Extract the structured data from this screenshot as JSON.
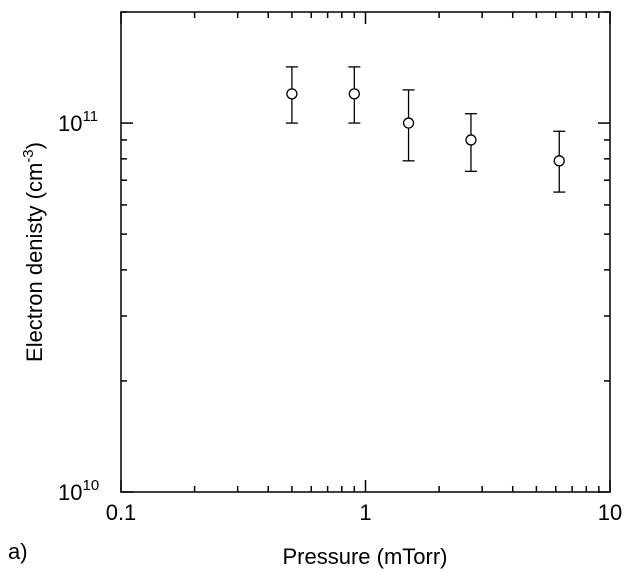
{
  "chart_data": {
    "type": "scatter",
    "panel_label": "a)",
    "xlabel": "Pressure (mTorr)",
    "ylabel_main": "Electron denisty (cm",
    "ylabel_sup": "-3",
    "ylabel_close": ")",
    "x_scale": "log",
    "y_scale": "log",
    "xlim": [
      0.1,
      10
    ],
    "ylim": [
      10000000000.0,
      200000000000.0
    ],
    "x_ticks": [
      {
        "value": 0.1,
        "label": "0.1"
      },
      {
        "value": 1,
        "label": "1"
      },
      {
        "value": 10,
        "label": "10"
      }
    ],
    "y_ticks": [
      {
        "value": 10000000000.0,
        "base": "10",
        "exp": "10"
      },
      {
        "value": 100000000000.0,
        "base": "10",
        "exp": "11"
      }
    ],
    "grid": false,
    "marker": "open-circle",
    "points": [
      {
        "x": 0.5,
        "y": 120000000000.0,
        "y_low": 100000000000.0,
        "y_high": 142000000000.0
      },
      {
        "x": 0.9,
        "y": 120000000000.0,
        "y_low": 100000000000.0,
        "y_high": 142000000000.0
      },
      {
        "x": 1.5,
        "y": 100000000000.0,
        "y_low": 79000000000.0,
        "y_high": 123000000000.0
      },
      {
        "x": 2.7,
        "y": 90000000000.0,
        "y_low": 74000000000.0,
        "y_high": 106000000000.0
      },
      {
        "x": 6.2,
        "y": 79000000000.0,
        "y_low": 65000000000.0,
        "y_high": 95000000000.0
      }
    ]
  }
}
